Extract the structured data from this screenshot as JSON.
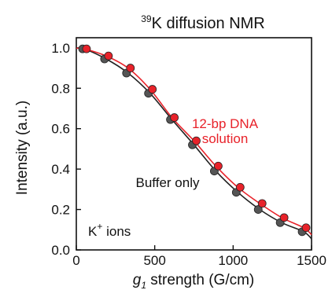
{
  "chart_data": {
    "type": "line",
    "title_sup": "39",
    "title_main": "K diffusion NMR",
    "xlabel_symbol": "g",
    "xlabel_sub": "1",
    "xlabel_rest": " strength (G/cm)",
    "ylabel": "Intensity (a.u.)",
    "xlim": [
      0,
      1500
    ],
    "ylim": [
      0,
      1.05
    ],
    "xticks": [
      "0",
      "500",
      "1000",
      "1500"
    ],
    "yticks": [
      "0.0",
      "0.2",
      "0.4",
      "0.6",
      "0.8",
      "1.0"
    ],
    "xtick_values": [
      0,
      500,
      1000,
      1500
    ],
    "ytick_values": [
      0.0,
      0.2,
      0.4,
      0.6,
      0.8,
      1.0
    ],
    "annotations": {
      "dna_line1": "12-bp DNA",
      "dna_line2": "solution",
      "buffer": "Buffer only",
      "ions": "K",
      "ions_sup": "+",
      "ions_rest": " ions"
    },
    "series": [
      {
        "label": "12-bp DNA solution",
        "color": "#e8222a",
        "x": [
          50,
          190,
          330,
          470,
          610,
          750,
          890,
          1030,
          1170,
          1310,
          1450
        ],
        "y": [
          0.995,
          0.96,
          0.9,
          0.795,
          0.655,
          0.54,
          0.415,
          0.31,
          0.23,
          0.16,
          0.11
        ]
      },
      {
        "label": "Buffer only",
        "color": "#555555",
        "x": [
          50,
          190,
          330,
          470,
          610,
          750,
          890,
          1030,
          1170,
          1310,
          1450
        ],
        "y": [
          0.995,
          0.945,
          0.875,
          0.775,
          0.645,
          0.52,
          0.39,
          0.285,
          0.2,
          0.135,
          0.09
        ]
      }
    ]
  }
}
